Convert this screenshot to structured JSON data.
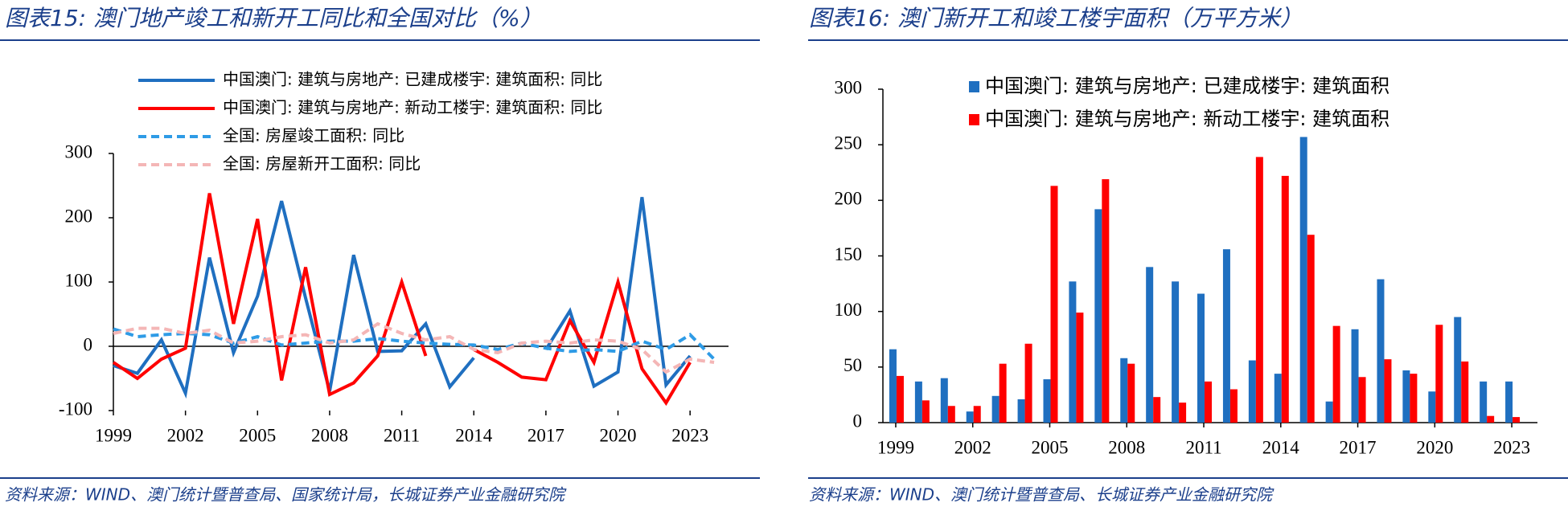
{
  "chart_data": [
    {
      "type": "line",
      "title": "图表15: 澳门地产竣工和新开工同比和全国对比（%）",
      "source": "资料来源：WIND、澳门统计暨普查局、国家统计局，长城证券产业金融研究院",
      "x": [
        1999,
        2000,
        2001,
        2002,
        2003,
        2004,
        2005,
        2006,
        2007,
        2008,
        2009,
        2010,
        2011,
        2012,
        2013,
        2014,
        2015,
        2016,
        2017,
        2018,
        2019,
        2020,
        2021,
        2022,
        2023,
        2024
      ],
      "xlim": [
        1999,
        2024.6
      ],
      "xticks": [
        1999,
        2002,
        2005,
        2008,
        2011,
        2014,
        2017,
        2020,
        2023
      ],
      "ylim": [
        -100,
        300
      ],
      "yticks": [
        -100,
        0,
        100,
        200,
        300
      ],
      "series": [
        {
          "name": "中国澳门: 建筑与房地产: 已建成楼宇: 建筑面积: 同比",
          "color": "#1f6fc0",
          "linestyle": "solid",
          "values": [
            -30,
            -42,
            10,
            -73,
            138,
            -10,
            78,
            226,
            75,
            -70,
            142,
            -8,
            -7,
            35,
            -63,
            -18,
            null,
            null,
            -5,
            55,
            -62,
            -40,
            232,
            -60,
            -15,
            null
          ]
        },
        {
          "name": "中国澳门: 建筑与房地产: 新动工楼宇: 建筑面积: 同比",
          "color": "#ff0000",
          "linestyle": "solid",
          "values": [
            -25,
            -50,
            -20,
            -3,
            238,
            35,
            198,
            -53,
            123,
            -75,
            -57,
            -15,
            100,
            -15,
            null,
            -5,
            -25,
            -48,
            -52,
            40,
            -25,
            100,
            -35,
            -88,
            -25,
            null
          ]
        },
        {
          "name": "全国: 房屋竣工面积: 同比",
          "color": "#2e9be6",
          "linestyle": "dashed",
          "values": [
            27,
            15,
            18,
            20,
            18,
            5,
            15,
            2,
            5,
            8,
            8,
            12,
            8,
            5,
            3,
            2,
            -5,
            5,
            -3,
            -8,
            -5,
            -8,
            8,
            -5,
            18,
            -20
          ]
        },
        {
          "name": "全国: 房屋新开工面积: 同比",
          "color": "#f4b6b6",
          "linestyle": "dashed",
          "values": [
            20,
            28,
            28,
            20,
            25,
            5,
            8,
            15,
            18,
            5,
            10,
            35,
            20,
            10,
            15,
            -5,
            -10,
            5,
            8,
            5,
            10,
            8,
            -5,
            -40,
            -20,
            -25
          ]
        }
      ]
    },
    {
      "type": "bar",
      "title": "图表16: 澳门新开工和竣工楼宇面积（万平方米）",
      "source": "资料来源：WIND、澳门统计暨普查局、长城证券产业金融研究院",
      "x": [
        1999,
        2000,
        2001,
        2002,
        2003,
        2004,
        2005,
        2006,
        2007,
        2008,
        2009,
        2010,
        2011,
        2012,
        2013,
        2014,
        2015,
        2016,
        2017,
        2018,
        2019,
        2020,
        2021,
        2022,
        2023
      ],
      "xlim": [
        1998.5,
        2024
      ],
      "xticks": [
        1999,
        2002,
        2005,
        2008,
        2011,
        2014,
        2017,
        2020,
        2023
      ],
      "ylim": [
        0,
        300
      ],
      "yticks": [
        0,
        50,
        100,
        150,
        200,
        250,
        300
      ],
      "series": [
        {
          "name": "中国澳门: 建筑与房地产: 已建成楼宇: 建筑面积",
          "color": "#1f6fc0",
          "values": [
            66,
            37,
            40,
            10,
            24,
            21,
            39,
            127,
            192,
            58,
            140,
            127,
            116,
            156,
            56,
            44,
            257,
            19,
            84,
            129,
            47,
            28,
            95,
            37,
            37
          ]
        },
        {
          "name": "中国澳门: 建筑与房地产: 新动工楼宇: 建筑面积",
          "color": "#ff0000",
          "values": [
            42,
            20,
            15,
            15,
            53,
            71,
            213,
            99,
            219,
            53,
            23,
            18,
            37,
            30,
            239,
            222,
            169,
            87,
            41,
            57,
            44,
            88,
            55,
            6,
            5
          ]
        }
      ]
    }
  ]
}
